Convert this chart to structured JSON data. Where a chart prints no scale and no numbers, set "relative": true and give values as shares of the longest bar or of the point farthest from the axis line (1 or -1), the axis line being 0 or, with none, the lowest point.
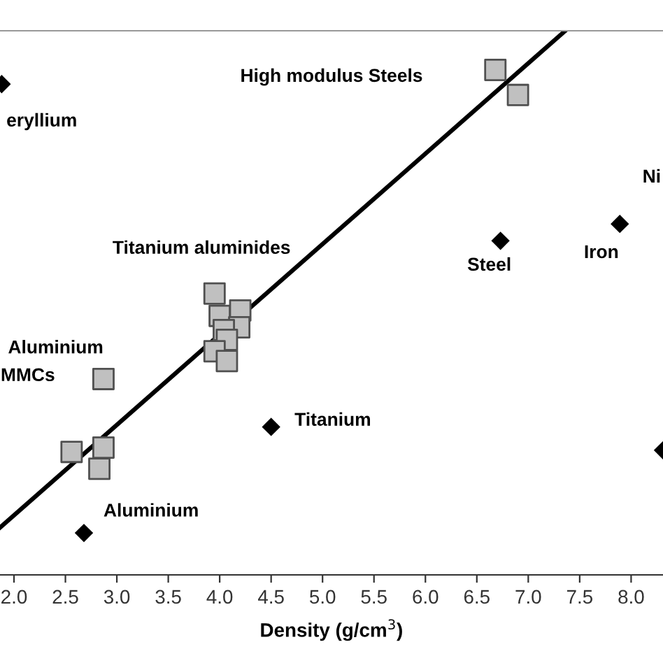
{
  "chart_data": {
    "type": "scatter",
    "relative": true,
    "xlabel": "Density (g/cm$^{3}$)",
    "xlim": [
      1.864,
      8.31
    ],
    "xticks": [
      {
        "value": 2,
        "label": "2.0"
      },
      {
        "value": 2.5,
        "label": "2.5"
      },
      {
        "value": 3,
        "label": "3.0"
      },
      {
        "value": 3.5,
        "label": "3.5"
      },
      {
        "value": 4,
        "label": "4.0"
      },
      {
        "value": 4.5,
        "label": "4.5"
      },
      {
        "value": 5,
        "label": "5.0"
      },
      {
        "value": 5.5,
        "label": "5.5"
      },
      {
        "value": 6,
        "label": "6.0"
      },
      {
        "value": 6.5,
        "label": "6.5"
      },
      {
        "value": 7,
        "label": "7.0"
      },
      {
        "value": 7.5,
        "label": "7.5"
      },
      {
        "value": 8,
        "label": "8.0"
      }
    ],
    "grid": false,
    "legend": false,
    "series": [
      {
        "marker": "square",
        "color": "#c0c0c0",
        "x": [
          6.68,
          6.9,
          3.95,
          4.0,
          4.2,
          4.19,
          4.04,
          4.07,
          3.95,
          4.07,
          2.87,
          2.56,
          2.87,
          2.83
        ],
        "values": [
          0.928,
          0.882,
          0.517,
          0.476,
          0.486,
          0.455,
          0.45,
          0.432,
          0.411,
          0.393,
          0.36,
          0.226,
          0.234,
          0.195
        ]
      },
      {
        "marker": "diamond",
        "color": "#000000",
        "x": [
          1.88,
          6.73,
          7.89,
          4.5,
          2.68,
          8.31
        ],
        "values": [
          0.902,
          0.614,
          0.645,
          0.272,
          0.077,
          0.229
        ]
      },
      {
        "type": "line",
        "marker": "none",
        "color": "#000000",
        "x": [
          1.864,
          7.36
        ],
        "values": [
          0.087,
          1.0
        ]
      }
    ],
    "annotations": [
      "High modulus Steels",
      "eryllium",
      "Titanium aluminides",
      "Aluminium",
      "MMCs",
      "Steel",
      "Iron",
      "Ni",
      "Titanium",
      "Aluminium"
    ]
  }
}
